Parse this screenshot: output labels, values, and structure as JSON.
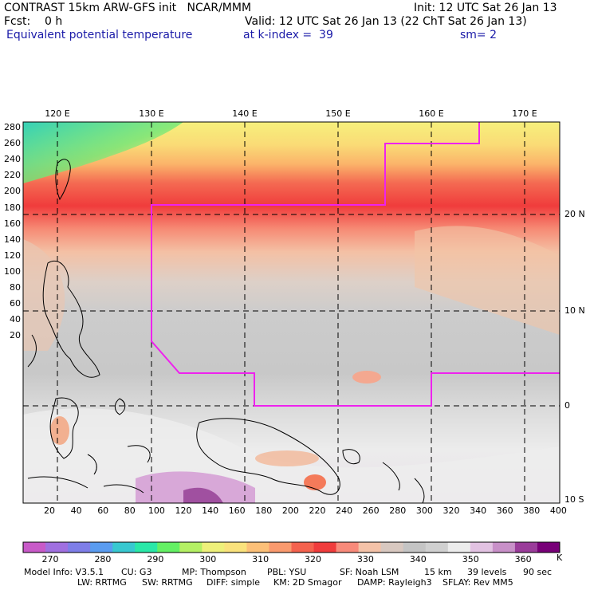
{
  "header": {
    "title": "CONTRAST 15km ARW-GFS init   NCAR/MMM",
    "init": "Init: 12 UTC Sat 26 Jan 13",
    "fcst": "Fcst:    0 h",
    "valid": "Valid: 12 UTC Sat 26 Jan 13 (22 ChT Sat 26 Jan 13)",
    "field": "Equivalent potential temperature",
    "level": "at k-index =  39",
    "smoothing": "sm= 2"
  },
  "map": {
    "lon_labels": [
      "120 E",
      "130 E",
      "140 E",
      "150 E",
      "160 E",
      "170 E"
    ],
    "lat_labels": [
      "20 N",
      "10 N",
      "0",
      "10 S"
    ],
    "x_ticks": [
      "20",
      "40",
      "60",
      "80",
      "100",
      "120",
      "140",
      "160",
      "180",
      "200",
      "220",
      "240",
      "260",
      "280",
      "300",
      "320",
      "340",
      "360",
      "380",
      "400"
    ],
    "y_ticks": [
      "280",
      "260",
      "240",
      "220",
      "200",
      "180",
      "160",
      "140",
      "120",
      "100",
      "80",
      "60",
      "40",
      "20"
    ],
    "domain_box_color": "#ee22ee"
  },
  "colorbar": {
    "labels": [
      "270",
      "280",
      "290",
      "300",
      "310",
      "320",
      "330",
      "340",
      "350",
      "360"
    ],
    "unit": "K",
    "colors": [
      "#c85ac8",
      "#a070e0",
      "#7e7ee8",
      "#5a9cf0",
      "#38c8d0",
      "#2ae8a8",
      "#64f064",
      "#b4f064",
      "#eef07a",
      "#fae27c",
      "#fcc078",
      "#fa9a6e",
      "#f4624e",
      "#f03c3c",
      "#f88a7a",
      "#f4c2a8",
      "#d8c8c0",
      "#c4c4c4",
      "#d0d0d0",
      "#ececec",
      "#e2c2e2",
      "#c890c8",
      "#9a3c9a",
      "#780078"
    ]
  },
  "model_info": {
    "line1": [
      "Model Info: V3.5.1",
      "CU: G3",
      "MP: Thompson",
      "PBL: YSU",
      "SF: Noah LSM",
      "15 km",
      "39 levels",
      "90 sec"
    ],
    "line2": [
      "LW: RRTMG",
      "SW: RRTMG",
      "DIFF: simple",
      "KM: 2D Smagor",
      "DAMP: Rayleigh3",
      "SFLAY: Rev MM5"
    ]
  }
}
